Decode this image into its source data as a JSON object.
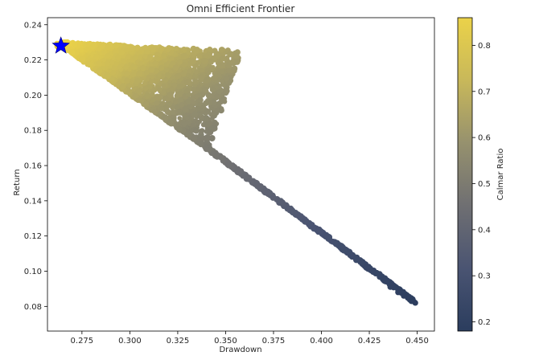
{
  "chart_data": {
    "type": "scatter",
    "title": "Omni Efficient Frontier",
    "xlabel": "Drawdown",
    "ylabel": "Return",
    "xlim": [
      0.257,
      0.459
    ],
    "ylim": [
      0.066,
      0.244
    ],
    "x_ticks": [
      0.275,
      0.3,
      0.325,
      0.35,
      0.375,
      0.4,
      0.425,
      0.45
    ],
    "y_ticks": [
      0.08,
      0.1,
      0.12,
      0.14,
      0.16,
      0.18,
      0.2,
      0.22,
      0.24
    ],
    "x_tick_labels": [
      "0.275",
      "0.300",
      "0.325",
      "0.350",
      "0.375",
      "0.400",
      "0.425",
      "0.450"
    ],
    "y_tick_labels": [
      "0.08",
      "0.10",
      "0.12",
      "0.14",
      "0.16",
      "0.18",
      "0.20",
      "0.22",
      "0.24"
    ],
    "grid": false,
    "colormap": "cividis",
    "colormap_stops": [
      "#2b3d5e",
      "#4a5472",
      "#6f6f72",
      "#96916e",
      "#c8b85a",
      "#ebd249"
    ],
    "colorbar": {
      "label": "Calmar Ratio",
      "range": [
        0.18,
        0.86
      ],
      "ticks": [
        0.2,
        0.3,
        0.4,
        0.5,
        0.6,
        0.7,
        0.8
      ],
      "tick_labels": [
        "0.2",
        "0.3",
        "0.4",
        "0.5",
        "0.6",
        "0.7",
        "0.8"
      ]
    },
    "frontier_line": {
      "x": [
        0.265,
        0.34,
        0.449
      ],
      "y": [
        0.228,
        0.17,
        0.082
      ]
    },
    "cloud_top": {
      "x": [
        0.266,
        0.3,
        0.32,
        0.337,
        0.35,
        0.358
      ],
      "y": [
        0.23,
        0.228,
        0.227,
        0.226,
        0.226,
        0.225
      ]
    },
    "cloud_right": {
      "x": [
        0.358,
        0.352,
        0.346,
        0.341
      ],
      "y": [
        0.225,
        0.205,
        0.185,
        0.168
      ]
    },
    "tail_points": [
      {
        "x": 0.436,
        "y": 0.091
      },
      {
        "x": 0.44,
        "y": 0.088
      },
      {
        "x": 0.443,
        "y": 0.086
      },
      {
        "x": 0.447,
        "y": 0.083
      },
      {
        "x": 0.449,
        "y": 0.082
      }
    ],
    "optimal_point": {
      "x": 0.264,
      "y": 0.228,
      "marker": "star",
      "color": "#0000ff"
    }
  }
}
